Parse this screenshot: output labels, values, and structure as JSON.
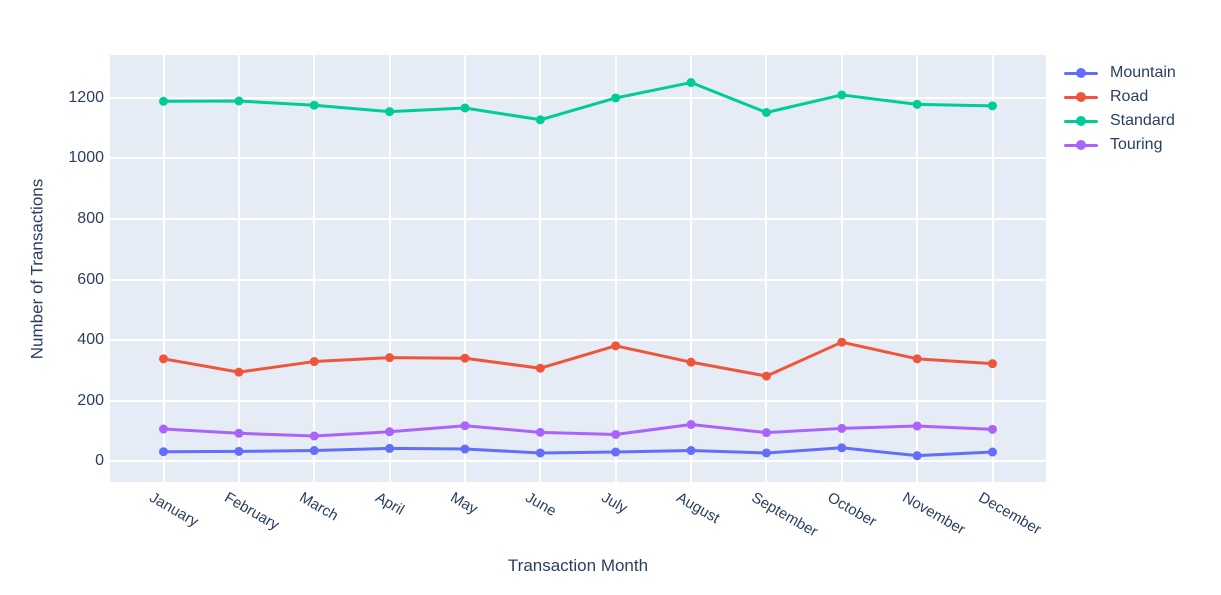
{
  "figure": {
    "xlabel": "Transaction Month",
    "ylabel": "Number of Transactions"
  },
  "chart_data": {
    "type": "line",
    "title": "",
    "xlabel": "Transaction Month",
    "ylabel": "Number of Transactions",
    "categories": [
      "January",
      "February",
      "March",
      "April",
      "May",
      "June",
      "July",
      "August",
      "September",
      "October",
      "November",
      "December"
    ],
    "series": [
      {
        "name": "Mountain",
        "color": "#636EFA",
        "values": [
          31,
          32,
          35,
          42,
          40,
          27,
          30,
          35,
          27,
          44,
          18,
          30
        ]
      },
      {
        "name": "Road",
        "color": "#EF553B",
        "values": [
          338,
          294,
          329,
          342,
          340,
          307,
          381,
          327,
          281,
          393,
          338,
          322
        ]
      },
      {
        "name": "Standard",
        "color": "#00CC96",
        "values": [
          1189,
          1190,
          1176,
          1155,
          1167,
          1128,
          1200,
          1251,
          1152,
          1210,
          1179,
          1174
        ]
      },
      {
        "name": "Touring",
        "color": "#AB63FA",
        "values": [
          106,
          92,
          83,
          97,
          117,
          95,
          88,
          121,
          94,
          108,
          116,
          105
        ]
      }
    ],
    "yticks": [
      0,
      200,
      400,
      600,
      800,
      1000,
      1200
    ],
    "ylim": [
      -69,
      1342
    ],
    "grid": true,
    "legend_position": "right-top",
    "line_mode": "lines+markers",
    "plot_bgcolor": "#E5ECF6",
    "grid_color": "#FFFFFF",
    "text_color": "#2a3f5f",
    "paper_bgcolor": "#FFFFFF"
  }
}
